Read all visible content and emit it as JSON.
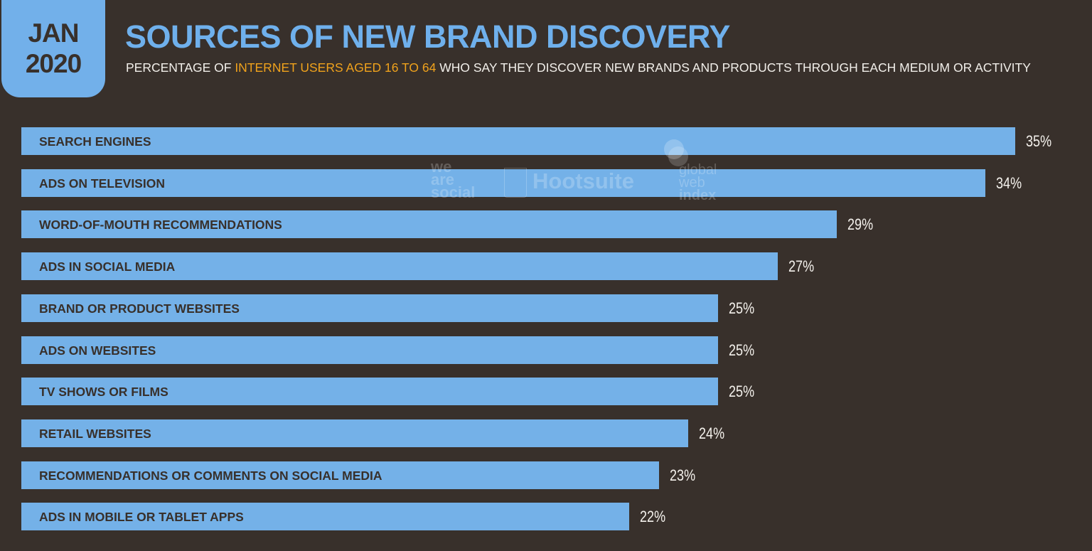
{
  "header": {
    "month": "JAN",
    "year": "2020",
    "title": "SOURCES OF NEW BRAND DISCOVERY",
    "subtitle_pre": "PERCENTAGE OF ",
    "subtitle_highlight": "INTERNET USERS AGED 16 TO 64",
    "subtitle_post": " WHO SAY THEY DISCOVER NEW BRANDS AND PRODUCTS THROUGH EACH MEDIUM OR ACTIVITY"
  },
  "watermarks": [
    "we are social",
    "Hootsuite",
    "global web index"
  ],
  "colors": {
    "background": "#38302b",
    "bar": "#74b1e8",
    "title": "#6fb0ec",
    "highlight": "#f0a21c"
  },
  "chart_data": {
    "type": "bar",
    "orientation": "horizontal",
    "title": "SOURCES OF NEW BRAND DISCOVERY",
    "xlabel": "",
    "ylabel": "",
    "categories": [
      "SEARCH ENGINES",
      "ADS ON TELEVISION",
      "WORD-OF-MOUTH RECOMMENDATIONS",
      "ADS IN SOCIAL MEDIA",
      "BRAND OR PRODUCT WEBSITES",
      "ADS ON WEBSITES",
      "TV SHOWS OR FILMS",
      "RETAIL WEBSITES",
      "RECOMMENDATIONS OR COMMENTS ON SOCIAL MEDIA",
      "ADS IN MOBILE OR TABLET APPS"
    ],
    "values": [
      35,
      34,
      29,
      27,
      25,
      25,
      25,
      24,
      23,
      22
    ],
    "value_labels": [
      "35%",
      "34%",
      "29%",
      "27%",
      "25%",
      "25%",
      "25%",
      "24%",
      "23%",
      "22%"
    ],
    "unit": "%"
  }
}
